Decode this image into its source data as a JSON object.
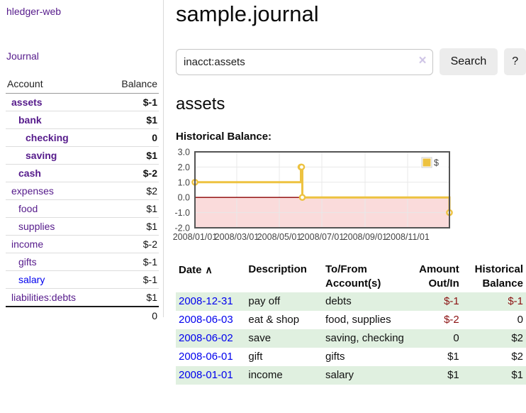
{
  "sidebar": {
    "brand": "hledger-web",
    "journal_link": "Journal",
    "accounts_table": {
      "headers": [
        "Account",
        "Balance"
      ],
      "rows": [
        {
          "name": "assets",
          "indent": 0,
          "bold": true,
          "balance": "$-1",
          "neg": "strong"
        },
        {
          "name": "bank",
          "indent": 1,
          "bold": true,
          "balance": "$1",
          "neg": "none"
        },
        {
          "name": "checking",
          "indent": 2,
          "bold": true,
          "balance": "0",
          "neg": "none"
        },
        {
          "name": "saving",
          "indent": 2,
          "bold": true,
          "balance": "$1",
          "neg": "none"
        },
        {
          "name": "cash",
          "indent": 1,
          "bold": true,
          "balance": "$-2",
          "neg": "strong"
        },
        {
          "name": "expenses",
          "indent": 0,
          "bold": false,
          "balance": "$2",
          "neg": "none"
        },
        {
          "name": "food",
          "indent": 1,
          "bold": false,
          "balance": "$1",
          "neg": "none"
        },
        {
          "name": "supplies",
          "indent": 1,
          "bold": false,
          "balance": "$1",
          "neg": "none"
        },
        {
          "name": "income",
          "indent": 0,
          "bold": false,
          "balance": "$-2",
          "neg": "soft"
        },
        {
          "name": "gifts",
          "indent": 1,
          "bold": false,
          "balance": "$-1",
          "neg": "soft"
        },
        {
          "name": "salary",
          "indent": 1,
          "bold": false,
          "balance": "$-1",
          "neg": "soft",
          "link_color": "blue"
        },
        {
          "name": "liabilities:debts",
          "indent": 0,
          "bold": false,
          "balance": "$1",
          "neg": "none"
        }
      ],
      "total": "0"
    }
  },
  "header": {
    "title": "sample.journal"
  },
  "search": {
    "value": "inacct:assets",
    "clear_icon": "×",
    "button_label": "Search",
    "help_label": "?"
  },
  "account_page": {
    "heading": "assets",
    "chart_title": "Historical Balance:"
  },
  "chart_data": {
    "type": "line",
    "step": true,
    "title": "Historical Balance",
    "legend_position": "top-right",
    "grid": true,
    "ylim": [
      -2,
      3
    ],
    "xlim_days": [
      0,
      365
    ],
    "y_ticks": [
      3,
      2,
      1,
      0,
      -1,
      -2
    ],
    "x_ticks": [
      {
        "day": 0,
        "label": "2008/01/01"
      },
      {
        "day": 60,
        "label": "2008/03/01"
      },
      {
        "day": 121,
        "label": "2008/05/01"
      },
      {
        "day": 182,
        "label": "2008/07/01"
      },
      {
        "day": 244,
        "label": "2008/09/01"
      },
      {
        "day": 305,
        "label": "2008/11/01"
      }
    ],
    "series": [
      {
        "name": "$",
        "color": "#edc240",
        "points": [
          {
            "date": "2008-01-01",
            "day": 0,
            "value": 1
          },
          {
            "date": "2008-06-01",
            "day": 152,
            "value": 2
          },
          {
            "date": "2008-06-02",
            "day": 153,
            "value": 2
          },
          {
            "date": "2008-06-03",
            "day": 154,
            "value": 0
          },
          {
            "date": "2008-12-31",
            "day": 365,
            "value": -1
          }
        ]
      }
    ],
    "zero_line_color": "#8b0000",
    "negative_region_color": "#fadbdb",
    "grid_color": "#e8e8e8",
    "border_color": "#545454",
    "tick_label_color": "#444444"
  },
  "register": {
    "headers": [
      "Date",
      "Description",
      "To/From Account(s)",
      "Amount Out/In",
      "Historical Balance"
    ],
    "sort_icon": "∧",
    "rows": [
      {
        "date": "2008-12-31",
        "description": "pay off",
        "accounts": "debts",
        "amount": "$-1",
        "balance": "$-1"
      },
      {
        "date": "2008-06-03",
        "description": "eat & shop",
        "accounts": "food, supplies",
        "amount": "$-2",
        "balance": "0"
      },
      {
        "date": "2008-06-02",
        "description": "save",
        "accounts": "saving, checking",
        "amount": "0",
        "balance": "$2"
      },
      {
        "date": "2008-06-01",
        "description": "gift",
        "accounts": "gifts",
        "amount": "$1",
        "balance": "$2"
      },
      {
        "date": "2008-01-01",
        "description": "income",
        "accounts": "salary",
        "amount": "$1",
        "balance": "$1"
      }
    ]
  }
}
